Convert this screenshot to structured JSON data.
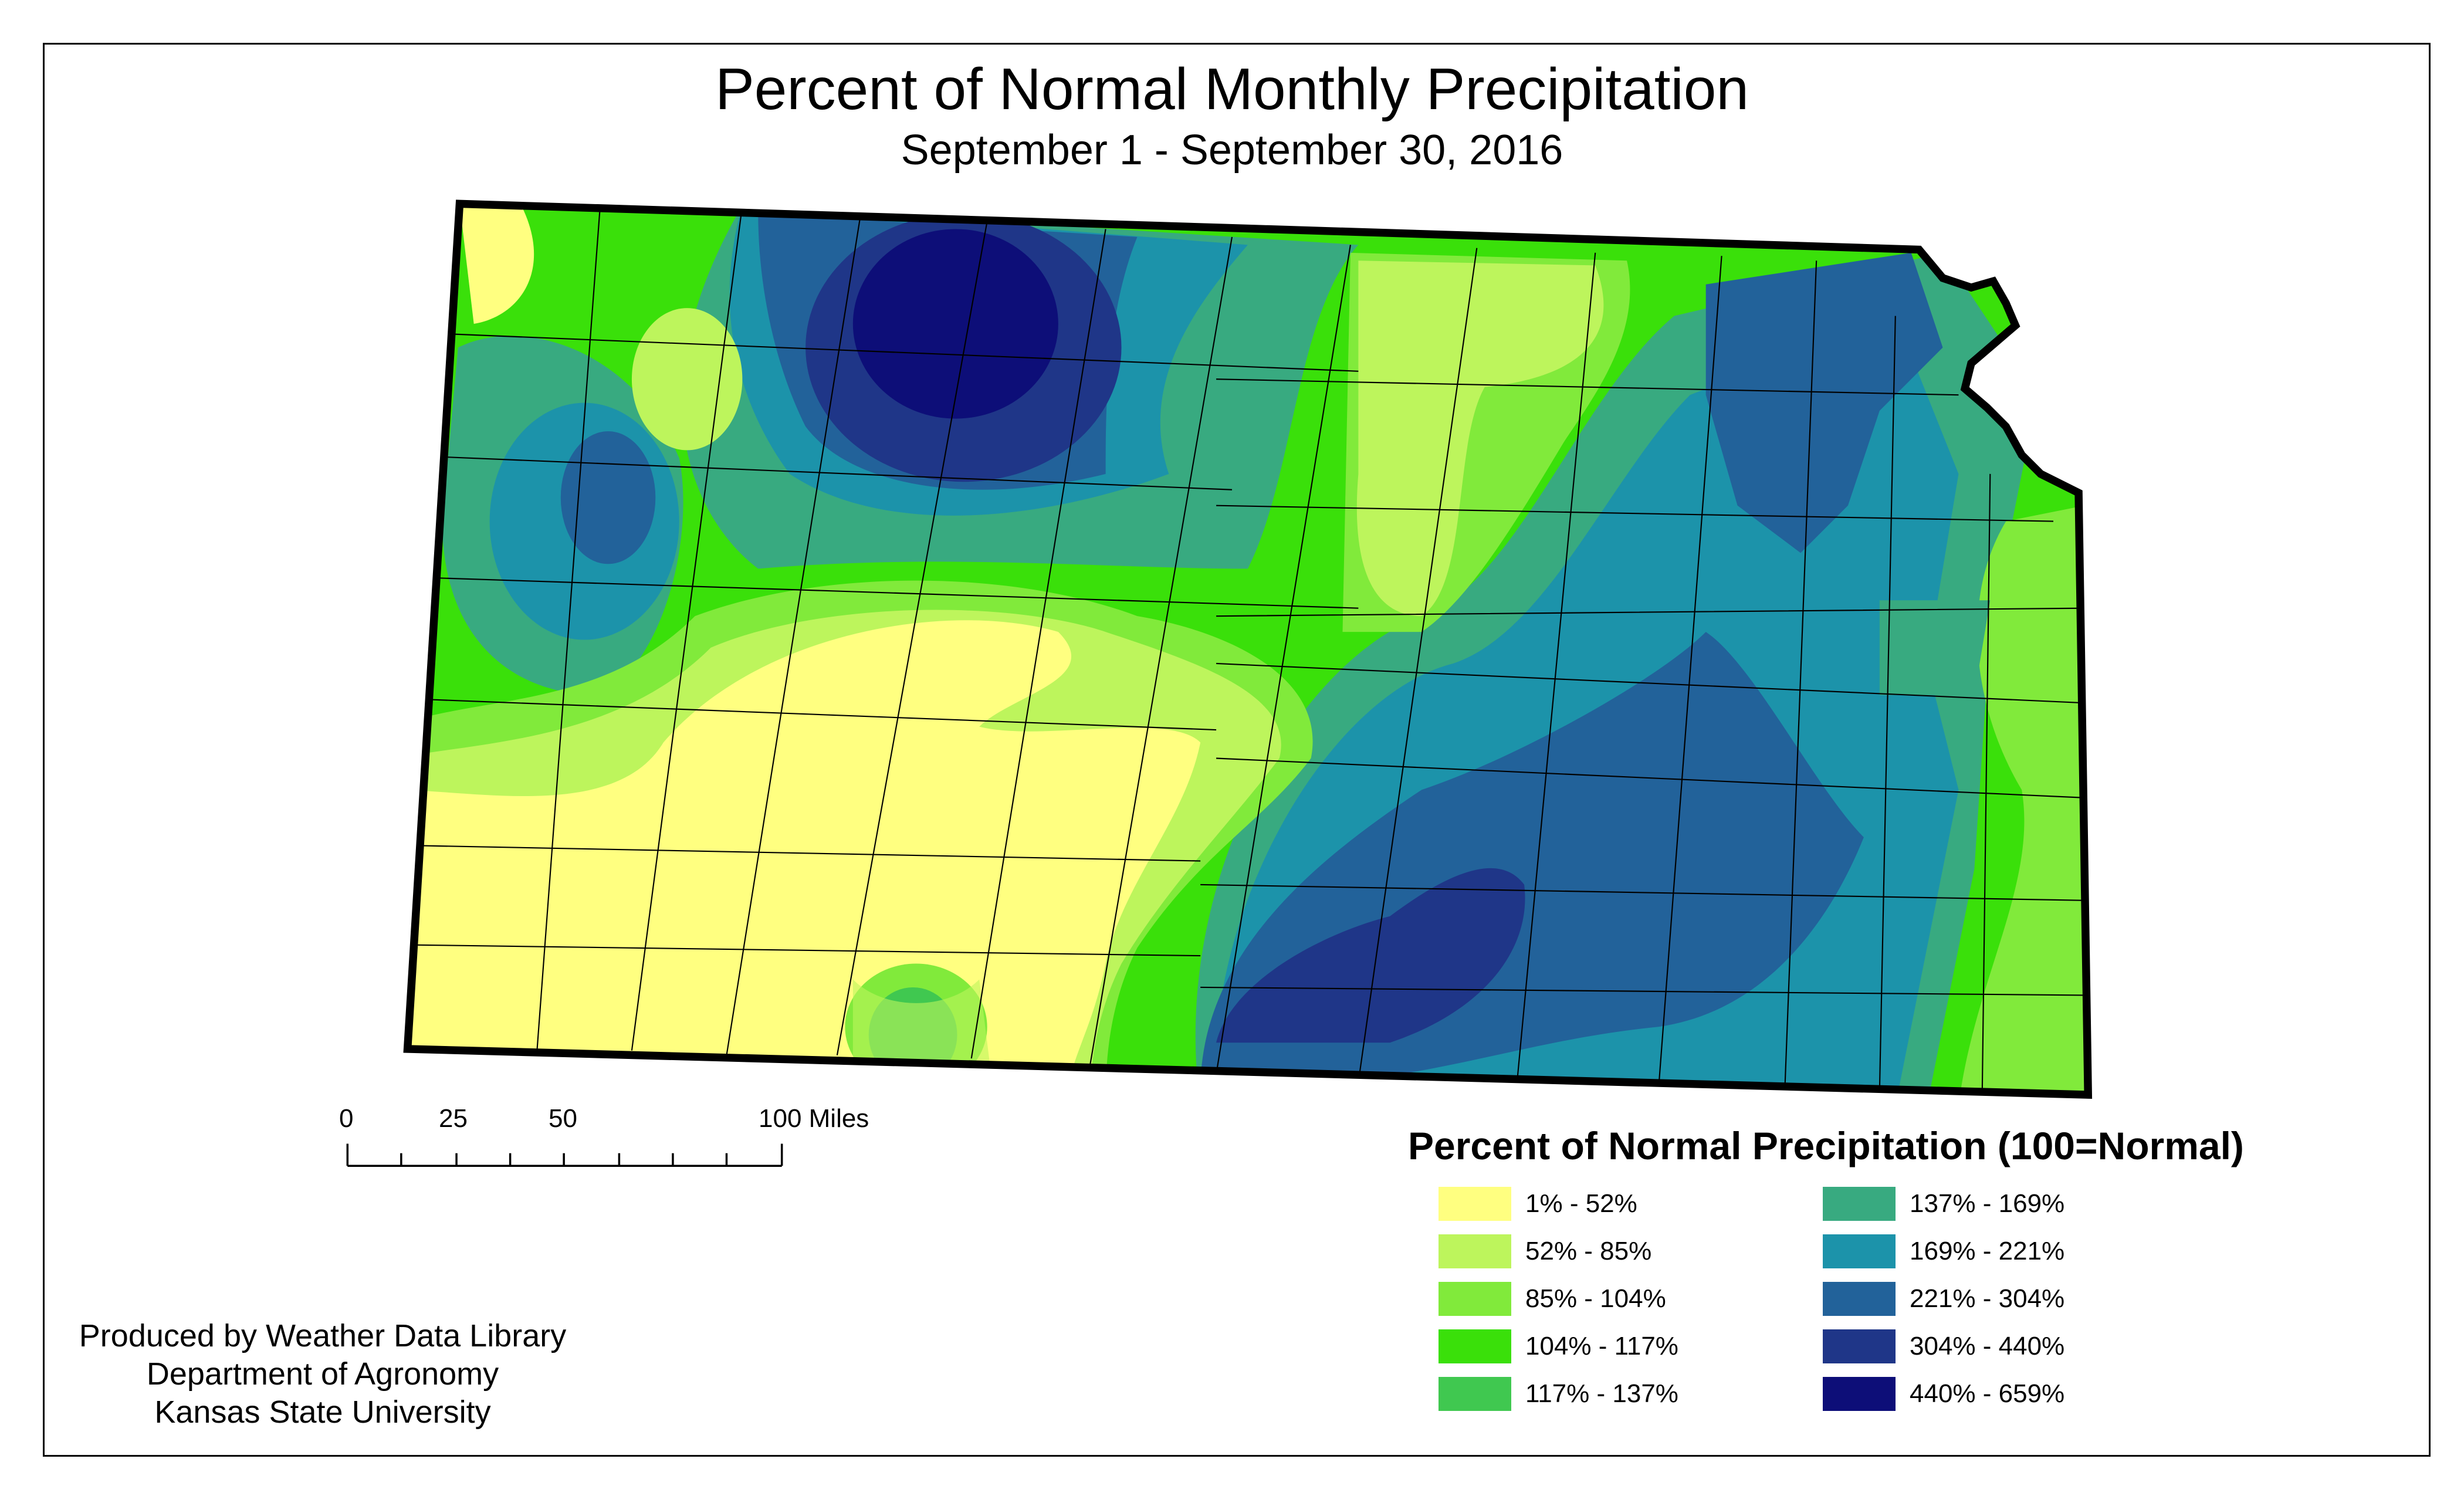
{
  "title": "Percent of Normal Monthly Precipitation",
  "subtitle": "September 1 - September 30, 2016",
  "legend": {
    "title": "Percent of Normal Precipitation (100=Normal)",
    "items": [
      {
        "label": "1% - 52%",
        "color": "#FFFF80"
      },
      {
        "label": "52% - 85%",
        "color": "#BDF55C"
      },
      {
        "label": "85% - 104%",
        "color": "#81EA3B"
      },
      {
        "label": "104% - 117%",
        "color": "#3AE00A"
      },
      {
        "label": "117% - 137%",
        "color": "#40C850"
      },
      {
        "label": "137% - 169%",
        "color": "#38AA80"
      },
      {
        "label": "169% - 221%",
        "color": "#1C93AA"
      },
      {
        "label": "221% - 304%",
        "color": "#22629A"
      },
      {
        "label": "304% - 440%",
        "color": "#1F3688"
      },
      {
        "label": "440% - 659%",
        "color": "#0D0E78"
      }
    ]
  },
  "scale_bar": {
    "labels": [
      "0",
      "25",
      "50",
      "100 Miles"
    ]
  },
  "credits": [
    "Produced by Weather Data Library",
    "Department of Agronomy",
    "Kansas State University"
  ]
}
